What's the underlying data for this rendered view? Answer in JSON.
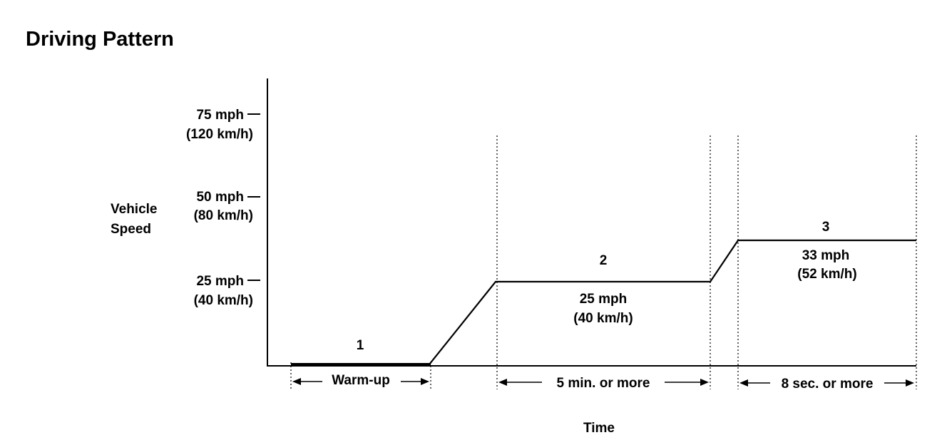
{
  "title": "Driving Pattern",
  "y_axis_label": [
    "Vehicle",
    "Speed"
  ],
  "x_axis_label": "Time",
  "speed_ticks": [
    {
      "mph": "75 mph",
      "kmh": "(120 km/h)",
      "value": 75
    },
    {
      "mph": "50 mph",
      "kmh": "(80 km/h)",
      "value": 50
    },
    {
      "mph": "25 mph",
      "kmh": "(40 km/h)",
      "value": 25
    }
  ],
  "phases": [
    {
      "number": "1",
      "duration_label": "Warm-up"
    },
    {
      "number": "2",
      "speed_mph": "25 mph",
      "speed_kmh": "(40 km/h)",
      "duration_label": "5 min. or more",
      "speed_value": 25
    },
    {
      "number": "3",
      "speed_mph": "33 mph",
      "speed_kmh": "(52 km/h)",
      "duration_label": "8 sec. or more",
      "speed_value": 33
    }
  ]
}
